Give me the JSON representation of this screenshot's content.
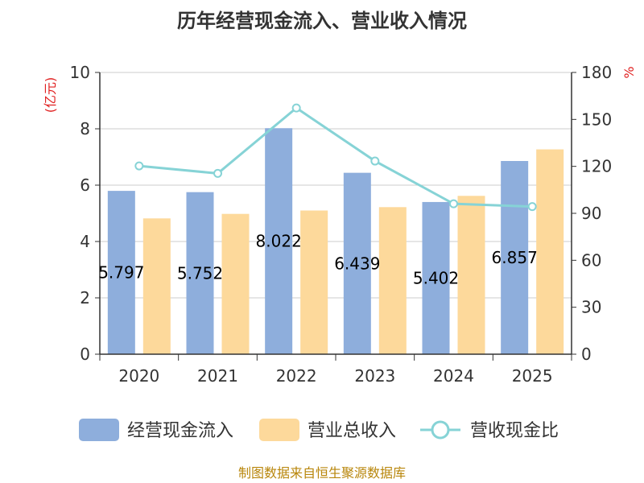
{
  "chart_data": {
    "type": "bar",
    "title": "历年经营现金流入、营业收入情况",
    "categories": [
      "2020",
      "2021",
      "2022",
      "2023",
      "2024",
      "2025"
    ],
    "series": [
      {
        "name": "经营现金流入",
        "type": "bar",
        "axis": "left",
        "color": "#8eaedc",
        "values": [
          5.797,
          5.752,
          8.022,
          6.439,
          5.402,
          6.857
        ],
        "labels": [
          "5.797",
          "5.752",
          "8.022",
          "6.439",
          "5.402",
          "6.857"
        ]
      },
      {
        "name": "营业总收入",
        "type": "bar",
        "axis": "left",
        "color": "#fdd99b",
        "values": [
          4.82,
          4.98,
          5.1,
          5.22,
          5.62,
          7.27
        ]
      },
      {
        "name": "营收现金比",
        "type": "line",
        "axis": "right",
        "color": "#86d3d6",
        "values": [
          120.3,
          115.5,
          157.3,
          123.4,
          96.1,
          94.3
        ]
      }
    ],
    "y_left": {
      "label": "(亿元)",
      "ylim": [
        0,
        10
      ],
      "ticks": [
        "0",
        "2",
        "4",
        "6",
        "8",
        "10"
      ]
    },
    "y_right": {
      "label": "%",
      "ylim": [
        0,
        180
      ],
      "ticks": [
        "0",
        "30",
        "60",
        "90",
        "120",
        "150",
        "180"
      ]
    },
    "grid": true,
    "legend": "bottom"
  },
  "source_text": "制图数据来自恒生聚源数据库"
}
